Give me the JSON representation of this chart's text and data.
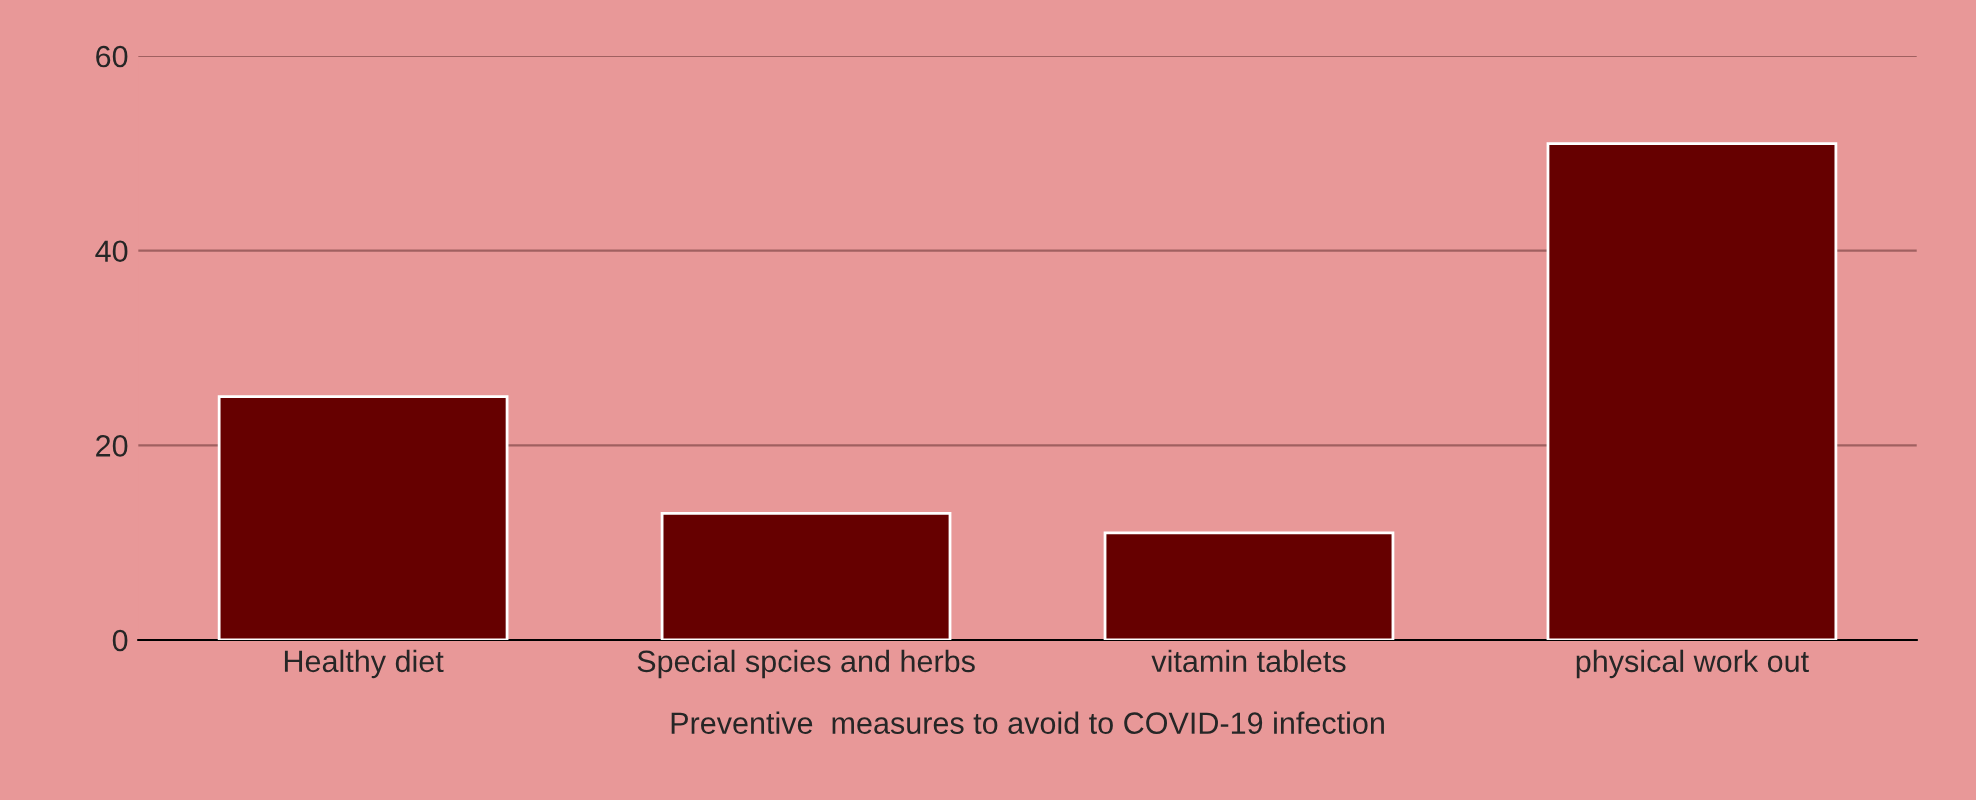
{
  "chart_data": {
    "type": "bar",
    "categories": [
      "Healthy diet",
      "Special spcies and herbs",
      "vitamin tablets",
      "physical work out"
    ],
    "values": [
      25,
      13,
      11,
      51
    ],
    "color": "#660000",
    "xlabel": "Preventive  measures to avoid to COVID-19 infection",
    "ylim": [
      0,
      60
    ],
    "yticks": [
      0,
      20,
      40,
      60
    ],
    "grid": "y"
  }
}
